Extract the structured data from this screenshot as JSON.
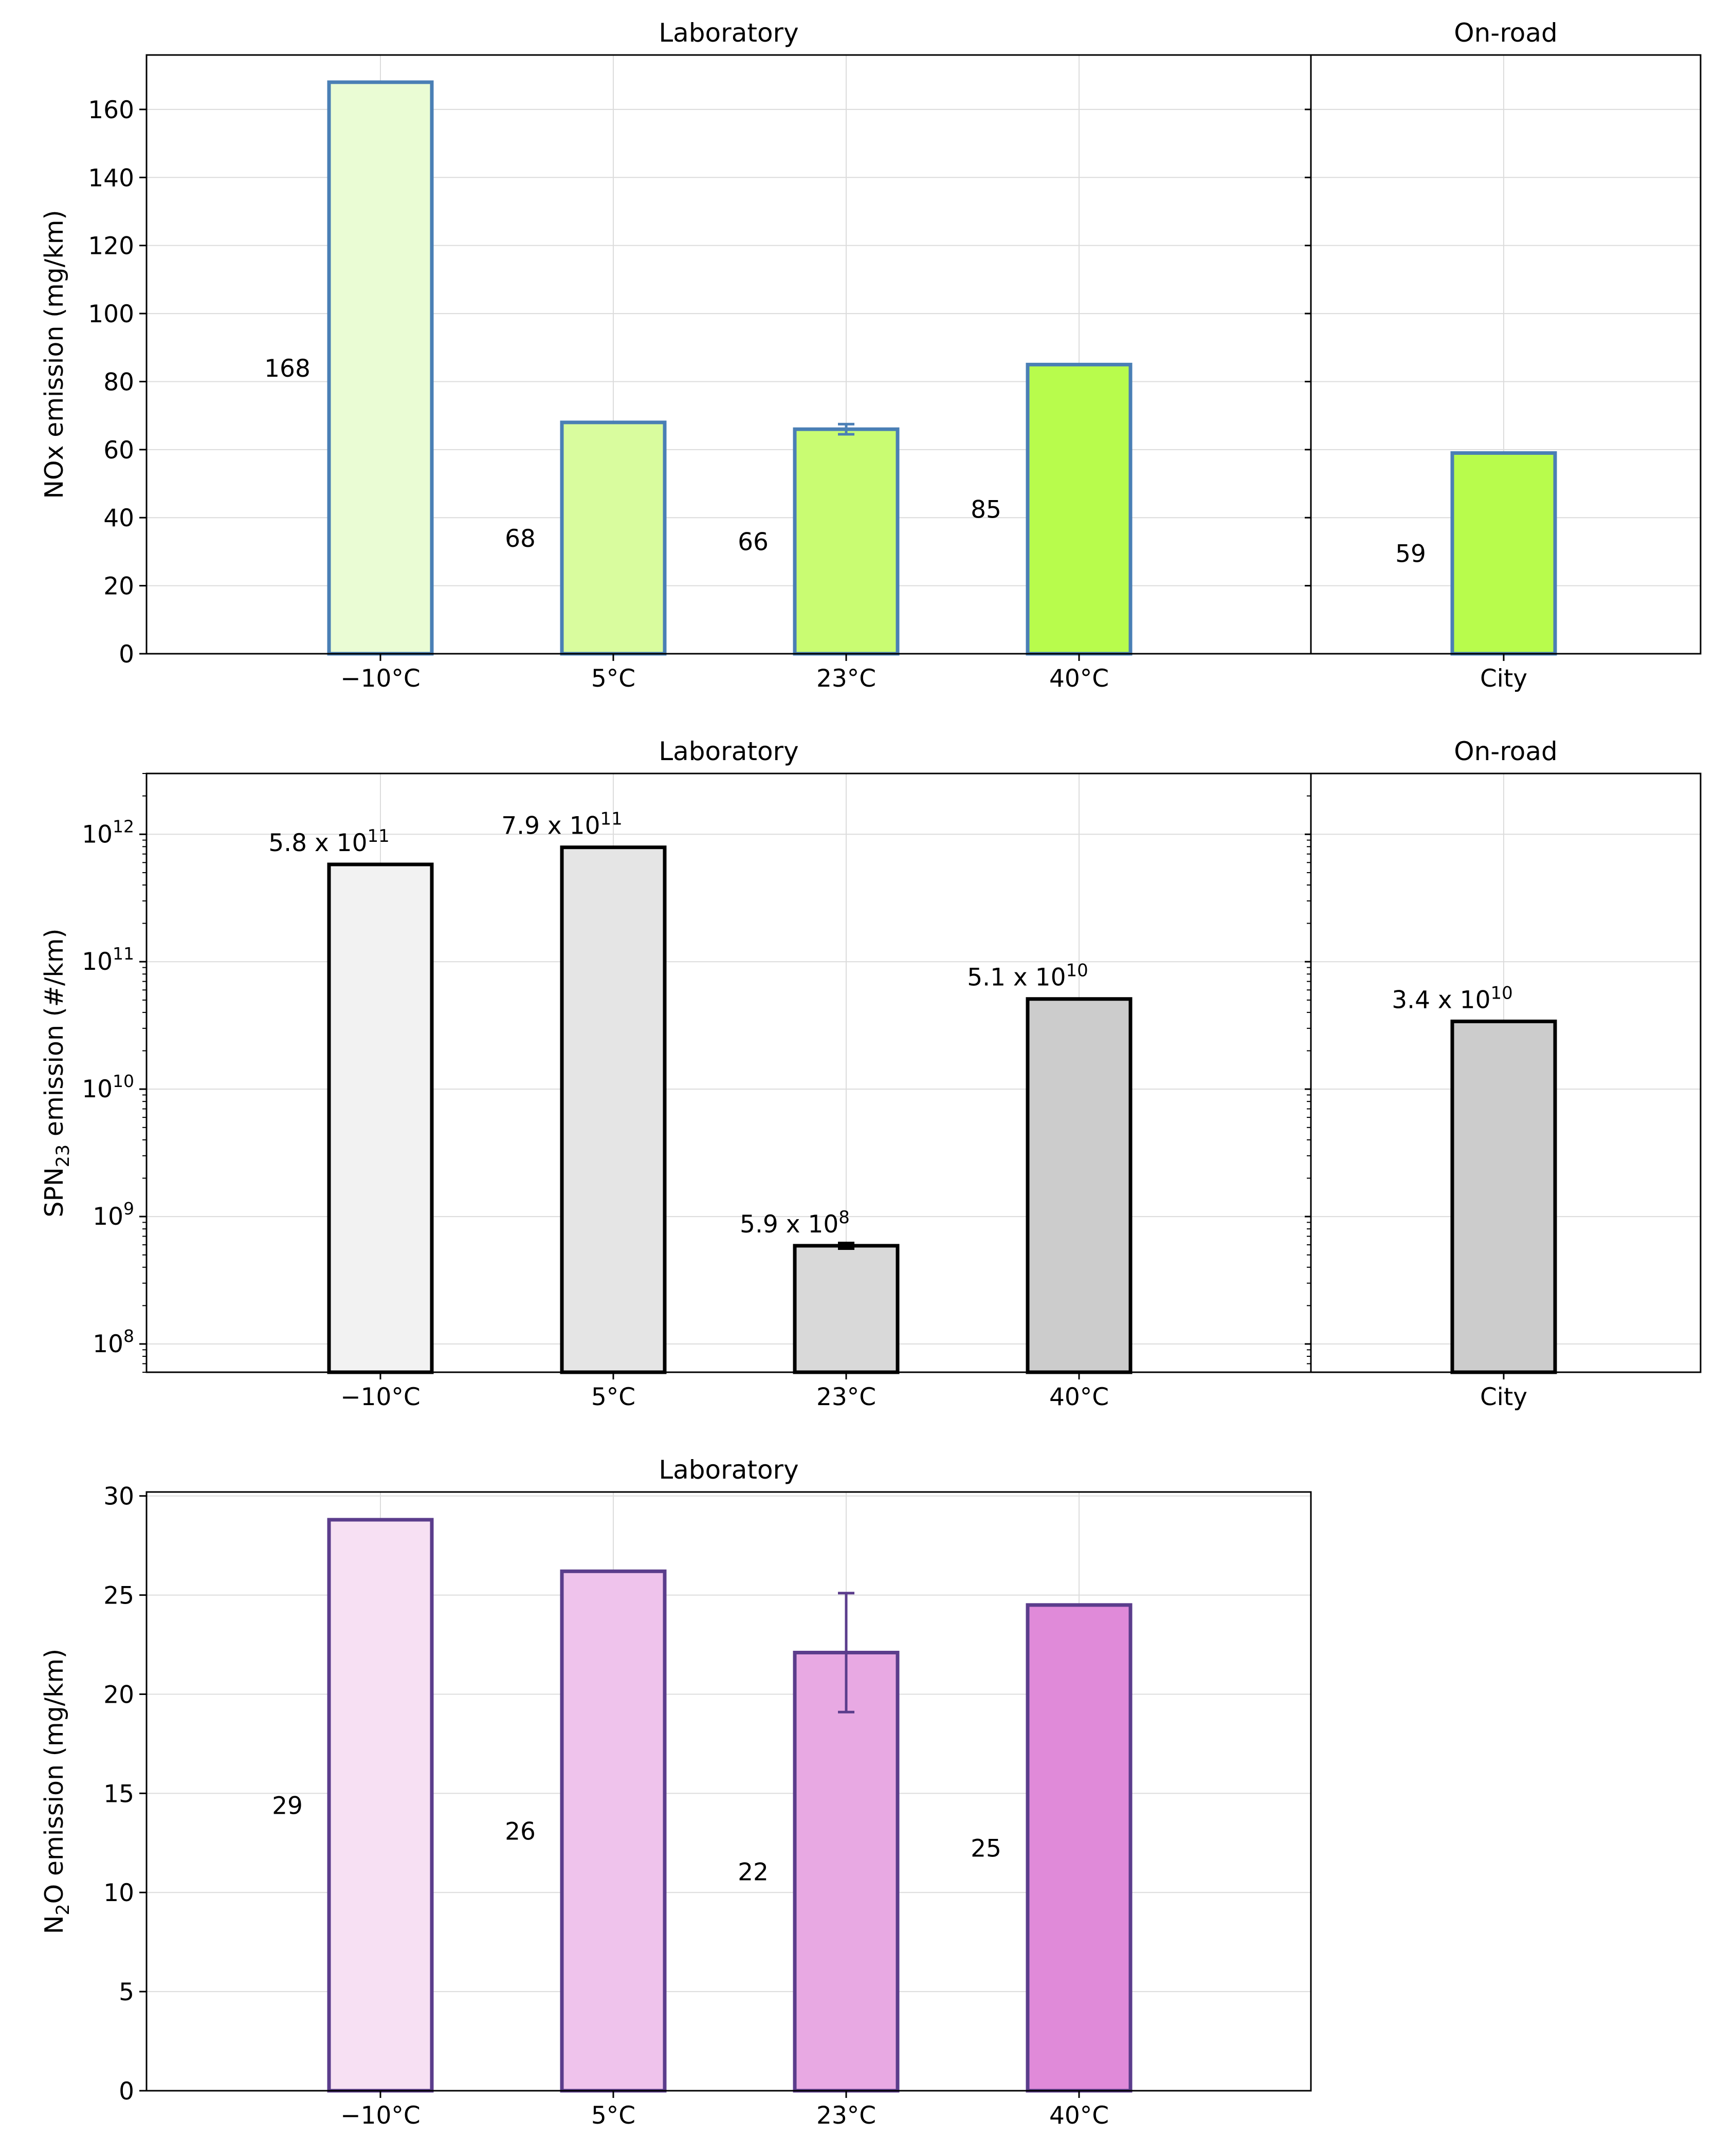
{
  "chart_data": [
    {
      "type": "bar",
      "ylabel": "NOx emission (mg/km)",
      "ylim": [
        0,
        176
      ],
      "yticks": [
        0,
        20,
        40,
        60,
        80,
        100,
        120,
        140,
        160
      ],
      "panels": [
        {
          "title": "Laboratory",
          "categories": [
            "−10°C",
            "5°C",
            "23°C",
            "40°C"
          ],
          "values": [
            168,
            68,
            66,
            85
          ],
          "errors": [
            0,
            0,
            1.5,
            0
          ],
          "labels": [
            "168",
            "68",
            "66",
            "85"
          ],
          "fill_colors": [
            "#eafcd4",
            "#d9fc9e",
            "#c9fc72",
            "#b8fc4c"
          ],
          "edge_color": "#4a7fb5"
        },
        {
          "title": "On-road",
          "categories": [
            "City"
          ],
          "values": [
            59
          ],
          "errors": [
            0
          ],
          "labels": [
            "59"
          ],
          "fill_colors": [
            "#b8fc4c"
          ],
          "edge_color": "#4a7fb5"
        }
      ]
    },
    {
      "type": "bar",
      "yscale": "log",
      "ylabel_main": "SPN",
      "ylabel_sub": "23",
      "ylabel_rest": " emission (#/km)",
      "ylim": [
        60000000.0,
        3000000000000.0
      ],
      "ytick_base": "10",
      "yticks_exp": [
        "8",
        "9",
        "10",
        "11",
        "12"
      ],
      "panels": [
        {
          "title": "Laboratory",
          "categories": [
            "−10°C",
            "5°C",
            "23°C",
            "40°C"
          ],
          "values": [
            580000000000.0,
            790000000000.0,
            590000000.0,
            51000000000.0
          ],
          "errors": [
            0,
            0,
            30000000.0,
            0
          ],
          "label_mantissa": [
            "5.8 x 10",
            "7.9 x 10",
            "5.9 x 10",
            "5.1 x 10"
          ],
          "label_exp": [
            "11",
            "11",
            "8",
            "10"
          ],
          "fill_colors": [
            "#f2f2f2",
            "#e5e5e5",
            "#d9d9d9",
            "#cccccc"
          ],
          "edge_color": "#000000"
        },
        {
          "title": "On-road",
          "categories": [
            "City"
          ],
          "values": [
            34000000000.0
          ],
          "errors": [
            0
          ],
          "label_mantissa": [
            "3.4 x 10"
          ],
          "label_exp": [
            "10"
          ],
          "fill_colors": [
            "#cccccc"
          ],
          "edge_color": "#000000"
        }
      ]
    },
    {
      "type": "bar",
      "ylabel_main": "N",
      "ylabel_sub": "2",
      "ylabel_rest": "O emission (mg/km)",
      "ylim": [
        0,
        30.2
      ],
      "yticks": [
        0,
        5,
        10,
        15,
        20,
        25,
        30
      ],
      "panels": [
        {
          "title": "Laboratory",
          "categories": [
            "−10°C",
            "5°C",
            "23°C",
            "40°C"
          ],
          "values": [
            28.8,
            26.2,
            22.1,
            24.5
          ],
          "errors": [
            0,
            0,
            3.0,
            0
          ],
          "labels": [
            "29",
            "26",
            "22",
            "25"
          ],
          "fill_colors": [
            "#f7e0f3",
            "#efc3ec",
            "#e8a9e3",
            "#e08ad9"
          ],
          "edge_color": "#5b3d8c"
        }
      ]
    }
  ]
}
